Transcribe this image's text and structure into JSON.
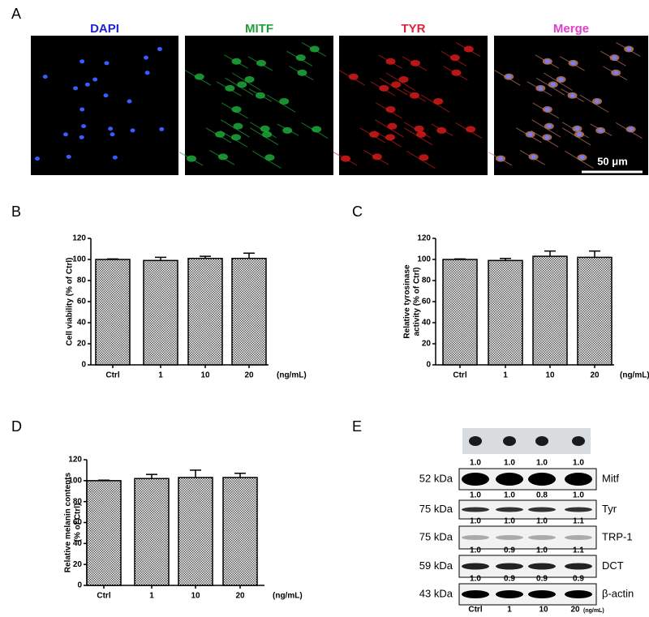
{
  "panel_labels": [
    "A",
    "B",
    "C",
    "D",
    "E"
  ],
  "microscopy": {
    "channels": [
      {
        "name": "DAPI",
        "color": "#1f1fd6"
      },
      {
        "name": "MITF",
        "color": "#1fa03c"
      },
      {
        "name": "TYR",
        "color": "#e0203c"
      },
      {
        "name": "Merge",
        "color": "#e040c8"
      }
    ],
    "scale_bar": "50 μm"
  },
  "chart_data": [
    {
      "type": "bar",
      "ylabel": [
        "Cell viability (% of Ctrl)"
      ],
      "categories": [
        "Ctrl",
        "1",
        "10",
        "20"
      ],
      "x_unit": "(ng/mL)",
      "series": [
        {
          "values": [
            100,
            99,
            101,
            101
          ],
          "errors": [
            0.5,
            3,
            2,
            5
          ]
        }
      ],
      "ylim": [
        0,
        120
      ],
      "yticks": [
        0,
        20,
        40,
        60,
        80,
        100,
        120
      ],
      "color": "#000000"
    },
    {
      "type": "bar",
      "ylabel": [
        "Relative tyrosinase",
        "activity (% of Ctrl)"
      ],
      "categories": [
        "Ctrl",
        "1",
        "10",
        "20"
      ],
      "x_unit": "(ng/mL)",
      "series": [
        {
          "values": [
            100,
            99,
            103,
            102
          ],
          "errors": [
            0.5,
            2,
            5,
            6
          ]
        }
      ],
      "ylim": [
        0,
        120
      ],
      "yticks": [
        0,
        20,
        40,
        60,
        80,
        100,
        120
      ],
      "color": "#000000"
    },
    {
      "type": "bar",
      "ylabel": [
        "Relative melanin contents",
        "(% of Ctrl)"
      ],
      "categories": [
        "Ctrl",
        "1",
        "10",
        "20"
      ],
      "x_unit": "(ng/mL)",
      "series": [
        {
          "values": [
            100,
            102,
            103,
            103
          ],
          "errors": [
            0.5,
            4,
            7,
            4
          ]
        }
      ],
      "ylim": [
        0,
        120
      ],
      "yticks": [
        0,
        20,
        40,
        60,
        80,
        100,
        120
      ],
      "color": "#000000"
    }
  ],
  "western_blot": {
    "lanes": [
      "Ctrl",
      "1",
      "10",
      "20"
    ],
    "lane_unit": "(ng/mL)",
    "rows": [
      {
        "protein": "Mitf",
        "size": "52 kDa",
        "ratios": [
          "1.0",
          "1.0",
          "1.0",
          "1.0"
        ]
      },
      {
        "protein": "Tyr",
        "size": "75 kDa",
        "ratios": [
          "1.0",
          "1.0",
          "0.8",
          "1.0"
        ]
      },
      {
        "protein": "TRP-1",
        "size": "75 kDa",
        "ratios": [
          "1.0",
          "1.0",
          "1.0",
          "1.1"
        ]
      },
      {
        "protein": "DCT",
        "size": "59 kDa",
        "ratios": [
          "1.0",
          "0.9",
          "1.0",
          "1.1"
        ]
      },
      {
        "protein": "β-actin",
        "size": "43 kDa",
        "ratios": [
          "1.0",
          "0.9",
          "0.9",
          "0.9"
        ]
      }
    ]
  }
}
